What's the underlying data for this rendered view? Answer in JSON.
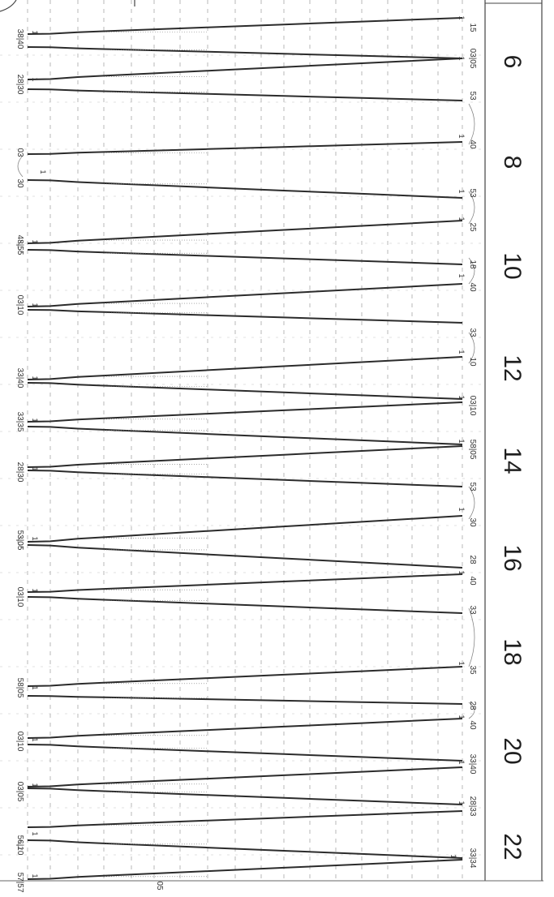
{
  "chart_data": {
    "type": "line",
    "title": "",
    "xlabel": "",
    "ylabel": "",
    "hour_labels": [
      "6",
      "8",
      "10",
      "12",
      "14",
      "16",
      "18",
      "20",
      "22"
    ],
    "right_labels": [
      "15",
      "03|05",
      "53",
      "40",
      "53",
      "25",
      "18",
      "40",
      "33",
      "10",
      "03|10",
      "58|05",
      "53",
      "30",
      "28",
      "40",
      "33",
      "35",
      "28",
      "40",
      "33|40",
      "28|33",
      "33|34"
    ],
    "left_labels": [
      "38|40",
      "28|30",
      "03",
      "30",
      "48|55",
      "03|10",
      "33|40",
      "33|35",
      "28|30",
      "53|05",
      "03|10",
      "58|05",
      "03|10",
      "03|05",
      "56|10",
      "57|57"
    ],
    "mid_label": "05",
    "mark_label": "1",
    "grid": true,
    "orientation": "rotated-90",
    "line_color": "#2b2b2b",
    "grid_color": "#9a9a9a"
  }
}
